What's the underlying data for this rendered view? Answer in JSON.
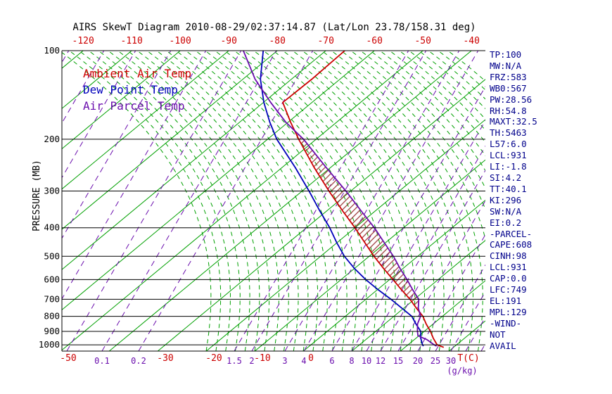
{
  "title": "AIRS SkewT Diagram 2010-08-29/02:37:14.87 (Lat/Lon 23.78/158.31 deg)",
  "legend": {
    "ambient_label": "Ambient Air Temp",
    "dewpoint_label": "Dew Point Temp",
    "parcel_label": "Air Parcel Temp"
  },
  "colors": {
    "red": "#cc0000",
    "green": "#00a000",
    "blue": "#0000bb",
    "purple": "#6a0dad",
    "black": "#000000",
    "stats_text": "#00008b",
    "hatch": "#993333"
  },
  "stats": [
    "TP:100",
    "MW:N/A",
    "FRZ:583",
    "WB0:567",
    "PW:28.56",
    "RH:54.8",
    "MAXT:32.5",
    "TH:5463",
    "L57:6.0",
    "LCL:931",
    "LI:-1.8",
    "SI:4.2",
    "TT:40.1",
    "KI:296",
    "SW:N/A",
    "EI:0.2",
    "-PARCEL-",
    "CAPE:608",
    "CINH:98",
    "LCL:931",
    "CAP:0.0",
    "LFC:749",
    "EL:191",
    "MPL:129",
    "-WIND-",
    "NOT",
    "AVAIL"
  ],
  "chart_data": {
    "type": "line",
    "subtype": "skewt_log_p",
    "title": "AIRS SkewT Diagram 2010-08-29/02:37:14.87 (Lat/Lon 23.78/158.31 deg)",
    "grid": true,
    "legend_position": "top-left",
    "pressure_axis": {
      "label": "PRESSURE (MB)",
      "scale": "log",
      "range_hpa": [
        100,
        1050
      ],
      "ticks": [
        100,
        200,
        300,
        400,
        500,
        600,
        700,
        800,
        900,
        1000
      ]
    },
    "temperature_axis": {
      "unit_label": "T(C)",
      "top_tick_labels_c": [
        -120,
        -110,
        -100,
        -90,
        -80,
        -70,
        -60,
        -50,
        -40
      ],
      "bottom_tick_labels_c": [
        -50,
        -30,
        -20,
        -10,
        0
      ]
    },
    "mixing_ratio_axis": {
      "unit_label": "(g/kg)",
      "labels": [
        {
          "value": 0.1,
          "x": 145
        },
        {
          "value": 0.2,
          "x": 197
        },
        {
          "value": 1.5,
          "x": 333
        },
        {
          "value": 2,
          "x": 358
        },
        {
          "value": 3,
          "x": 405
        },
        {
          "value": 4,
          "x": 432
        },
        {
          "value": 6,
          "x": 472
        },
        {
          "value": 8,
          "x": 500
        },
        {
          "value": 10,
          "x": 521
        },
        {
          "value": 12,
          "x": 541
        },
        {
          "value": 15,
          "x": 566
        },
        {
          "value": 20,
          "x": 594
        },
        {
          "value": 25,
          "x": 619
        },
        {
          "value": 30,
          "x": 641
        }
      ],
      "extra_line_x": [
        -150,
        -100,
        -55,
        -5,
        45,
        95,
        662,
        684,
        706,
        728
      ]
    },
    "series": [
      {
        "name": "Ambient Air Temp",
        "color": "#cc0000",
        "points_hpa_c": [
          [
            1020,
            28.0
          ],
          [
            1000,
            26.0
          ],
          [
            950,
            23.6
          ],
          [
            900,
            21.3
          ],
          [
            850,
            18.6
          ],
          [
            800,
            16.0
          ],
          [
            750,
            12.6
          ],
          [
            700,
            9.1
          ],
          [
            650,
            5.0
          ],
          [
            600,
            0.7
          ],
          [
            550,
            -4.0
          ],
          [
            500,
            -9.0
          ],
          [
            450,
            -14.2
          ],
          [
            400,
            -20.0
          ],
          [
            350,
            -26.8
          ],
          [
            300,
            -34.5
          ],
          [
            250,
            -43.3
          ],
          [
            200,
            -53.6
          ],
          [
            175,
            -59.5
          ],
          [
            150,
            -66.0
          ],
          [
            125,
            -65.8
          ],
          [
            100,
            -66.1
          ]
        ]
      },
      {
        "name": "Dew Point Temp",
        "color": "#0000bb",
        "points_hpa_c": [
          [
            1010,
            23.5
          ],
          [
            1000,
            23.0
          ],
          [
            950,
            21.0
          ],
          [
            900,
            19.3
          ],
          [
            850,
            16.5
          ],
          [
            800,
            13.7
          ],
          [
            750,
            9.6
          ],
          [
            700,
            5.2
          ],
          [
            650,
            0.2
          ],
          [
            600,
            -4.9
          ],
          [
            550,
            -10.0
          ],
          [
            500,
            -15.1
          ],
          [
            450,
            -20.0
          ],
          [
            400,
            -25.2
          ],
          [
            350,
            -31.5
          ],
          [
            300,
            -38.6
          ],
          [
            250,
            -47.2
          ],
          [
            200,
            -58.1
          ],
          [
            175,
            -63.8
          ],
          [
            150,
            -69.9
          ],
          [
            125,
            -76.4
          ],
          [
            100,
            -82.9
          ]
        ]
      },
      {
        "name": "Air Parcel Temp",
        "color": "#6a0dad",
        "points_hpa_c": [
          [
            1010,
            26.2
          ],
          [
            1000,
            25.4
          ],
          [
            960,
            22.6
          ],
          [
            931,
            19.8
          ],
          [
            900,
            18.6
          ],
          [
            850,
            16.8
          ],
          [
            800,
            15.5
          ],
          [
            750,
            13.0
          ],
          [
            700,
            10.9
          ],
          [
            650,
            7.3
          ],
          [
            600,
            3.6
          ],
          [
            550,
            -0.6
          ],
          [
            500,
            -5.0
          ],
          [
            450,
            -10.2
          ],
          [
            400,
            -16.0
          ],
          [
            350,
            -23.0
          ],
          [
            300,
            -31.0
          ],
          [
            250,
            -40.8
          ],
          [
            200,
            -52.6
          ],
          [
            175,
            -60.5
          ],
          [
            150,
            -68.5
          ],
          [
            125,
            -77.5
          ],
          [
            100,
            -87.0
          ]
        ]
      }
    ],
    "cape_region": {
      "hatched": true,
      "from_hpa": 749,
      "to_hpa": 191,
      "between": [
        "Air Parcel Temp",
        "Ambient Air Temp"
      ]
    }
  }
}
